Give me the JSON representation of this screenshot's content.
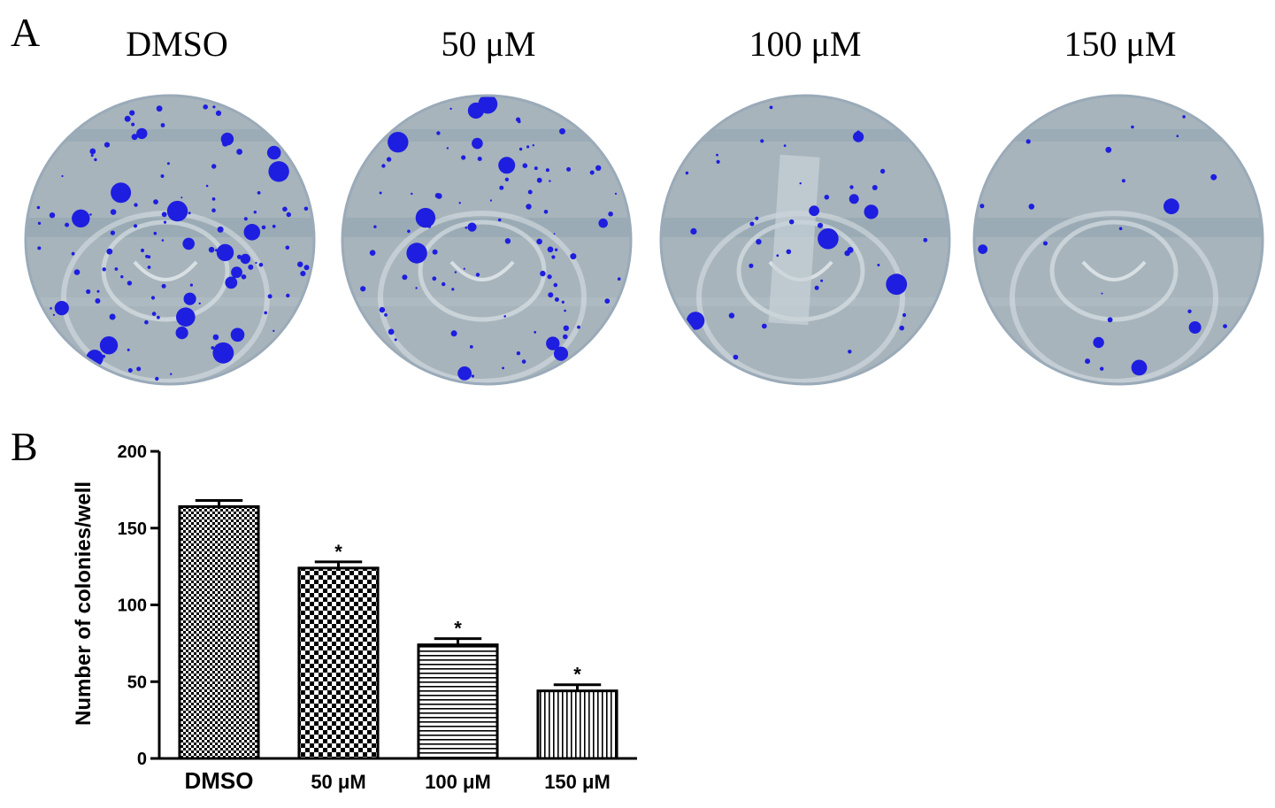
{
  "panel_a": {
    "letter": "A",
    "wells": [
      {
        "label": "DMSO"
      },
      {
        "label": "50 μM"
      },
      {
        "label": "100 μM"
      },
      {
        "label": "150 μM"
      }
    ]
  },
  "panel_b": {
    "letter": "B"
  },
  "colors": {
    "stain": "#1e1ee0",
    "plate": "#a7b4bc",
    "plate_edge": "#9aaab8"
  },
  "chart_data": {
    "type": "bar",
    "ylabel": "Number of colonies/well",
    "ylim": [
      0,
      200
    ],
    "yticks": [
      0,
      50,
      100,
      150,
      200
    ],
    "categories": [
      "DMSO",
      "50 μM",
      "100 μM",
      "150 μM"
    ],
    "values": [
      164,
      124,
      74,
      44
    ],
    "errors": [
      4,
      4,
      4,
      4
    ],
    "significance": [
      "",
      "*",
      "*",
      "*"
    ],
    "patterns": [
      "fine-checker",
      "checker",
      "horizontal-lines",
      "vertical-lines"
    ]
  }
}
